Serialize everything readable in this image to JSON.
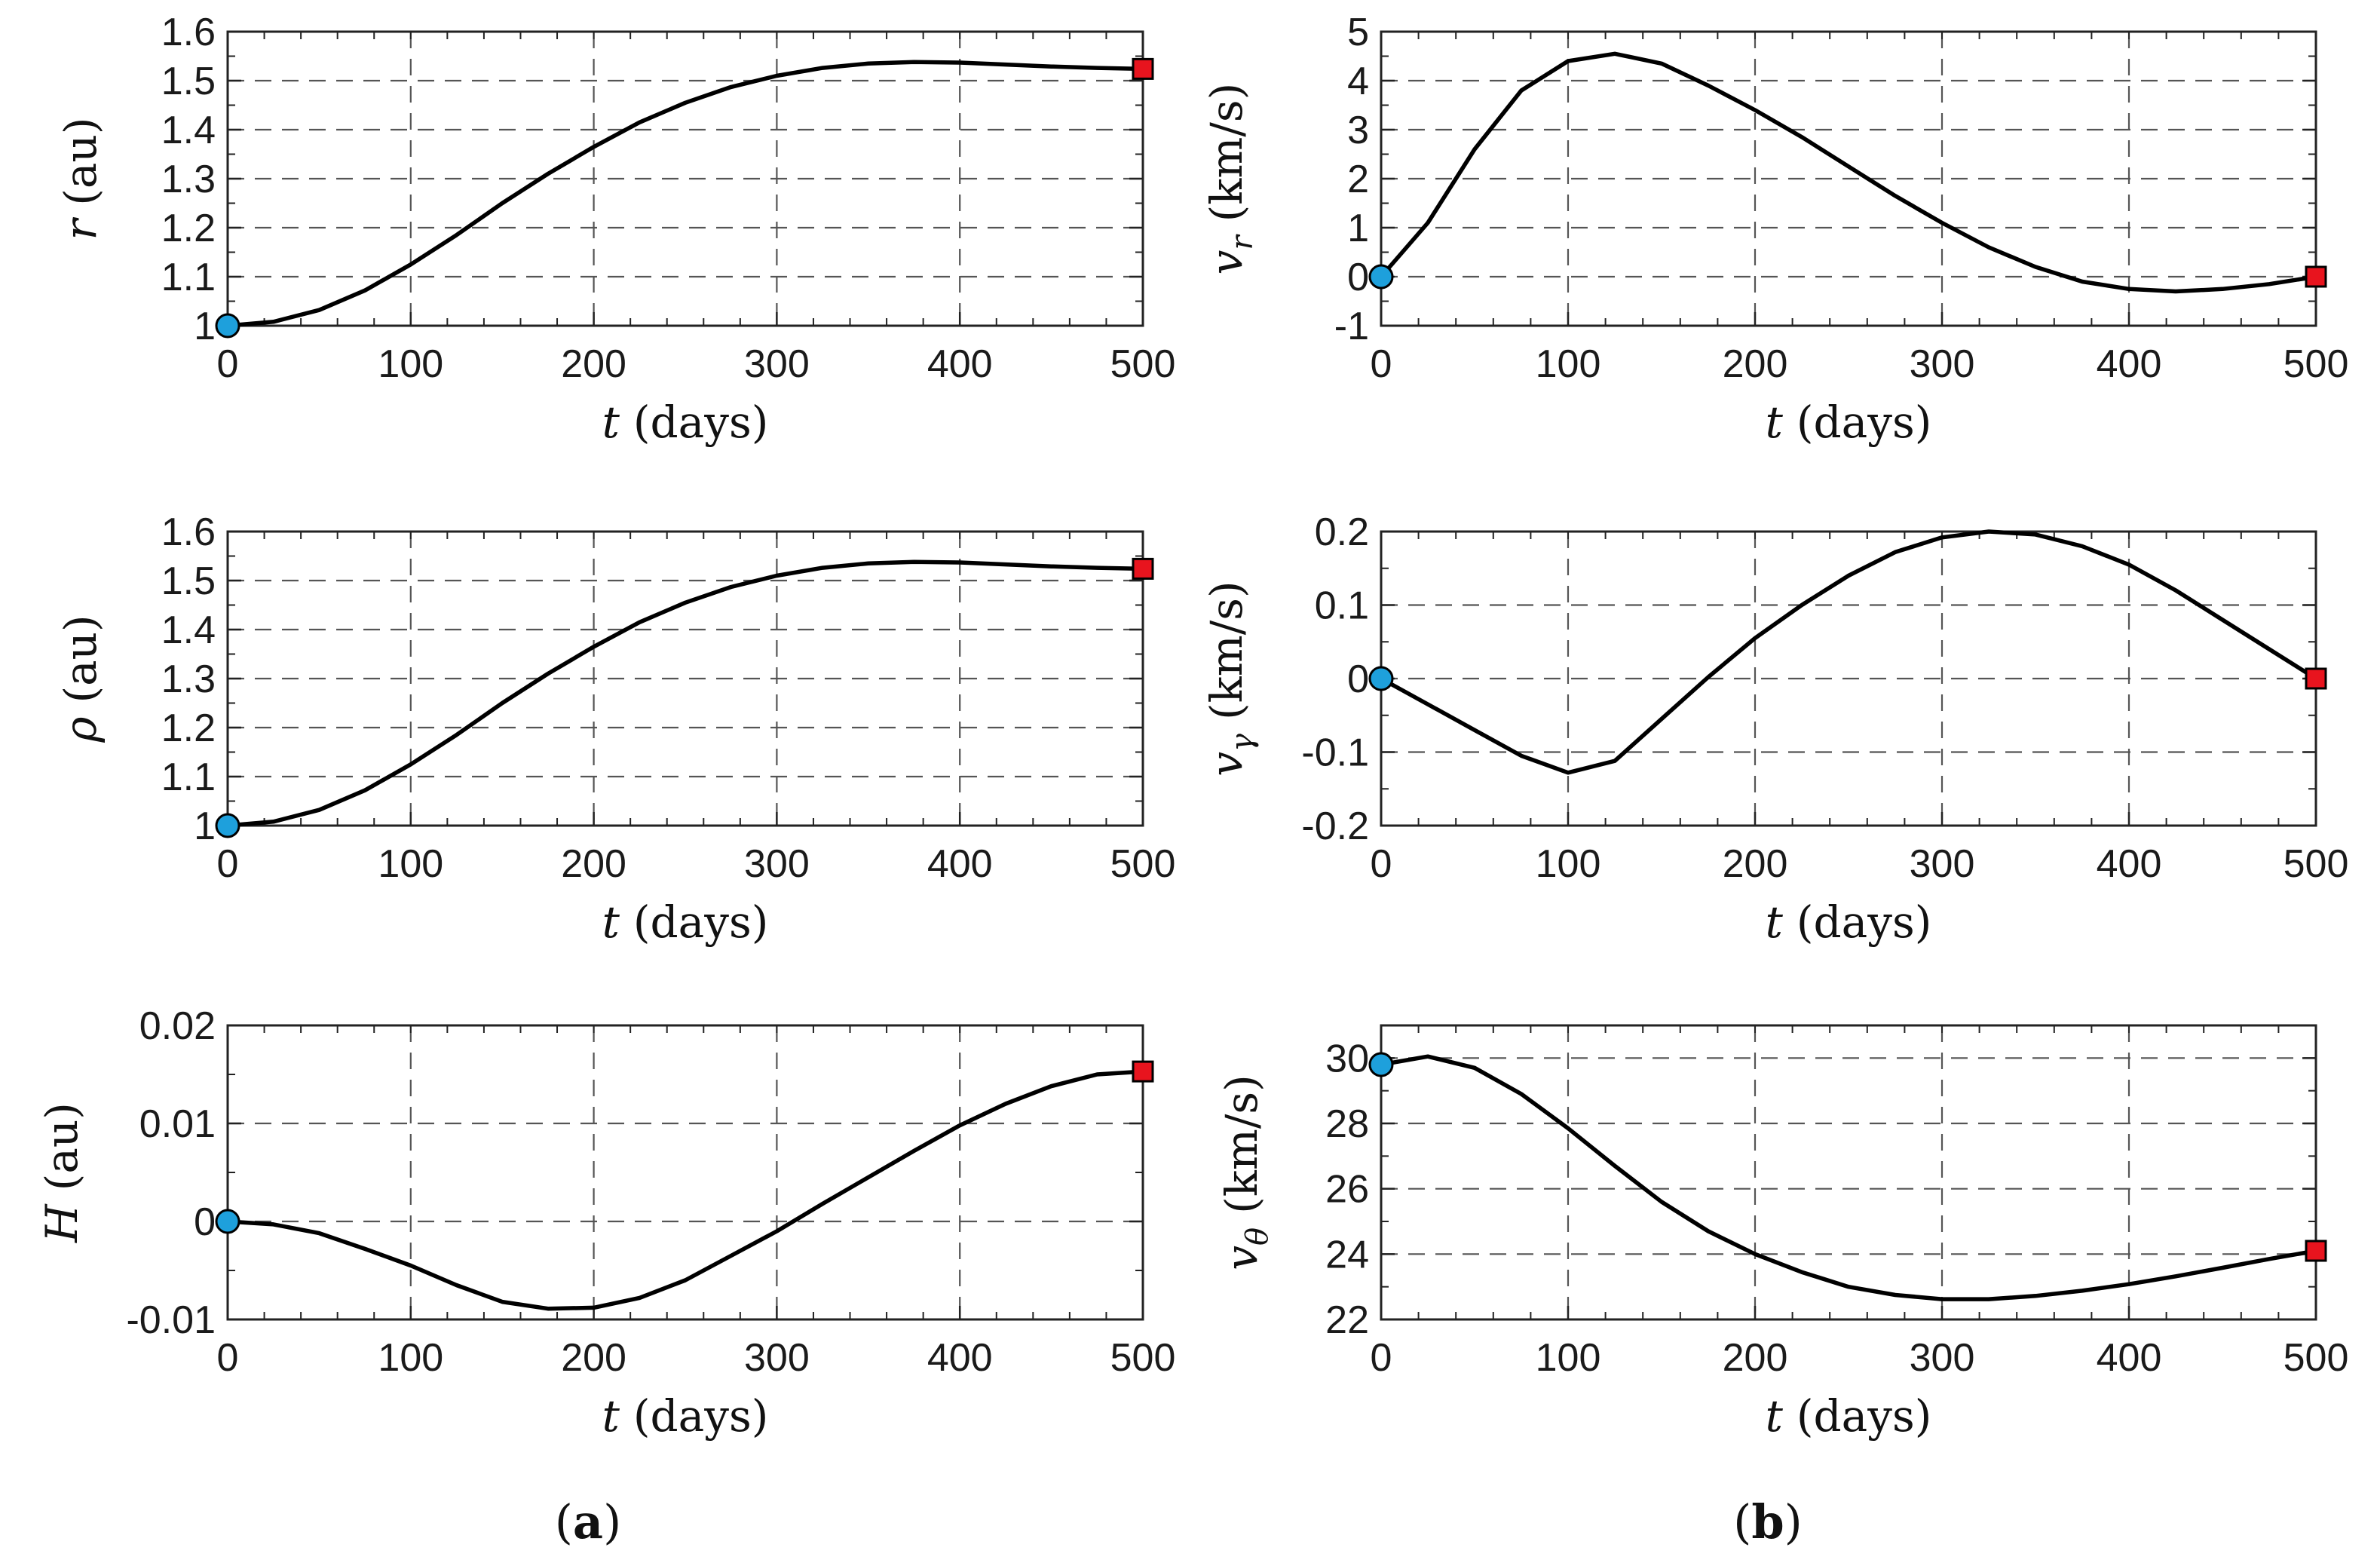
{
  "figure": {
    "panel_labels": [
      {
        "open": "(",
        "letter": "a",
        "close": ")"
      },
      {
        "open": "(",
        "letter": "b",
        "close": ")"
      }
    ],
    "start_marker_color": "#1ea0dc",
    "end_marker_color": "#e8141e",
    "line_color": "#000000"
  },
  "chart_data": [
    {
      "id": "r",
      "type": "line",
      "ylabel": {
        "symbol": "r",
        "sub": "",
        "unit": "(au)"
      },
      "xlabel": {
        "symbol": "t",
        "unit": "(days)"
      },
      "xlim": [
        0,
        500
      ],
      "ylim": [
        1.0,
        1.6
      ],
      "xticks": [
        0,
        100,
        200,
        300,
        400,
        500
      ],
      "yticks": [
        1.0,
        1.1,
        1.2,
        1.3,
        1.4,
        1.5,
        1.6
      ],
      "xtick_labels": [
        "0",
        "100",
        "200",
        "300",
        "400",
        "500"
      ],
      "ytick_labels": [
        "1",
        "1.1",
        "1.2",
        "1.3",
        "1.4",
        "1.5",
        "1.6"
      ],
      "x": [
        0,
        25,
        50,
        75,
        100,
        125,
        150,
        175,
        200,
        225,
        250,
        275,
        300,
        325,
        350,
        375,
        400,
        425,
        450,
        475,
        500
      ],
      "y": [
        1.0,
        1.008,
        1.032,
        1.072,
        1.125,
        1.185,
        1.25,
        1.31,
        1.365,
        1.415,
        1.455,
        1.487,
        1.51,
        1.526,
        1.535,
        1.538,
        1.537,
        1.533,
        1.529,
        1.526,
        1.524
      ],
      "start": [
        0,
        1.0
      ],
      "end": [
        500,
        1.524
      ]
    },
    {
      "id": "vr",
      "type": "line",
      "ylabel": {
        "symbol": "v",
        "sub": "r",
        "unit": "(km/s)"
      },
      "xlabel": {
        "symbol": "t",
        "unit": "(days)"
      },
      "xlim": [
        0,
        500
      ],
      "ylim": [
        -1,
        5
      ],
      "xticks": [
        0,
        100,
        200,
        300,
        400,
        500
      ],
      "yticks": [
        -1,
        0,
        1,
        2,
        3,
        4,
        5
      ],
      "xtick_labels": [
        "0",
        "100",
        "200",
        "300",
        "400",
        "500"
      ],
      "ytick_labels": [
        "-1",
        "0",
        "1",
        "2",
        "3",
        "4",
        "5"
      ],
      "x": [
        0,
        25,
        50,
        75,
        100,
        125,
        150,
        175,
        200,
        225,
        250,
        275,
        300,
        325,
        350,
        375,
        400,
        425,
        450,
        475,
        500
      ],
      "y": [
        0.0,
        1.1,
        2.6,
        3.8,
        4.4,
        4.55,
        4.35,
        3.9,
        3.4,
        2.85,
        2.25,
        1.65,
        1.1,
        0.6,
        0.2,
        -0.1,
        -0.25,
        -0.3,
        -0.25,
        -0.15,
        0.0
      ],
      "start": [
        0,
        0.0
      ],
      "end": [
        500,
        0.0
      ]
    },
    {
      "id": "rho",
      "type": "line",
      "ylabel": {
        "symbol": "ρ",
        "sub": "",
        "unit": "(au)"
      },
      "xlabel": {
        "symbol": "t",
        "unit": "(days)"
      },
      "xlim": [
        0,
        500
      ],
      "ylim": [
        1.0,
        1.6
      ],
      "xticks": [
        0,
        100,
        200,
        300,
        400,
        500
      ],
      "yticks": [
        1.0,
        1.1,
        1.2,
        1.3,
        1.4,
        1.5,
        1.6
      ],
      "xtick_labels": [
        "0",
        "100",
        "200",
        "300",
        "400",
        "500"
      ],
      "ytick_labels": [
        "1",
        "1.1",
        "1.2",
        "1.3",
        "1.4",
        "1.5",
        "1.6"
      ],
      "x": [
        0,
        25,
        50,
        75,
        100,
        125,
        150,
        175,
        200,
        225,
        250,
        275,
        300,
        325,
        350,
        375,
        400,
        425,
        450,
        475,
        500
      ],
      "y": [
        1.0,
        1.008,
        1.032,
        1.072,
        1.125,
        1.185,
        1.25,
        1.31,
        1.365,
        1.415,
        1.455,
        1.487,
        1.51,
        1.526,
        1.535,
        1.538,
        1.537,
        1.533,
        1.529,
        1.526,
        1.524
      ],
      "start": [
        0,
        1.0
      ],
      "end": [
        500,
        1.524
      ]
    },
    {
      "id": "vgamma",
      "type": "line",
      "ylabel": {
        "symbol": "v",
        "sub": "γ",
        "unit": "(km/s)"
      },
      "xlabel": {
        "symbol": "t",
        "unit": "(days)"
      },
      "xlim": [
        0,
        500
      ],
      "ylim": [
        -0.2,
        0.2
      ],
      "xticks": [
        0,
        100,
        200,
        300,
        400,
        500
      ],
      "yticks": [
        -0.2,
        -0.1,
        0.0,
        0.1,
        0.2
      ],
      "xtick_labels": [
        "0",
        "100",
        "200",
        "300",
        "400",
        "500"
      ],
      "ytick_labels": [
        "-0.2",
        "-0.1",
        "0",
        "0.1",
        "0.2"
      ],
      "x": [
        0,
        25,
        50,
        75,
        100,
        125,
        150,
        175,
        200,
        225,
        250,
        275,
        300,
        325,
        350,
        375,
        400,
        425,
        450,
        475,
        500
      ],
      "y": [
        0.0,
        -0.035,
        -0.07,
        -0.105,
        -0.128,
        -0.112,
        -0.055,
        0.002,
        0.055,
        0.1,
        0.14,
        0.172,
        0.192,
        0.2,
        0.196,
        0.18,
        0.155,
        0.12,
        0.08,
        0.04,
        0.0
      ],
      "start": [
        0,
        0.0
      ],
      "end": [
        500,
        0.0
      ]
    },
    {
      "id": "H",
      "type": "line",
      "ylabel": {
        "symbol": "H",
        "sub": "",
        "unit": "(au)"
      },
      "xlabel": {
        "symbol": "t",
        "unit": "(days)"
      },
      "xlim": [
        0,
        500
      ],
      "ylim": [
        -0.01,
        0.02
      ],
      "xticks": [
        0,
        100,
        200,
        300,
        400,
        500
      ],
      "yticks": [
        -0.01,
        0.0,
        0.01,
        0.02
      ],
      "xtick_labels": [
        "0",
        "100",
        "200",
        "300",
        "400",
        "500"
      ],
      "ytick_labels": [
        "-0.01",
        "0",
        "0.01",
        "0.02"
      ],
      "x": [
        0,
        25,
        50,
        75,
        100,
        125,
        150,
        175,
        200,
        225,
        250,
        275,
        300,
        325,
        350,
        375,
        400,
        425,
        450,
        475,
        500
      ],
      "y": [
        0.0,
        -0.0003,
        -0.0012,
        -0.0028,
        -0.0045,
        -0.0065,
        -0.0082,
        -0.0089,
        -0.0088,
        -0.0078,
        -0.006,
        -0.0035,
        -0.001,
        0.0018,
        0.0045,
        0.0072,
        0.0098,
        0.012,
        0.0138,
        0.015,
        0.0153
      ],
      "start": [
        0,
        0.0
      ],
      "end": [
        500,
        0.0153
      ]
    },
    {
      "id": "vtheta",
      "type": "line",
      "ylabel": {
        "symbol": "v",
        "sub": "θ",
        "unit": "(km/s)"
      },
      "xlabel": {
        "symbol": "t",
        "unit": "(days)"
      },
      "xlim": [
        0,
        500
      ],
      "ylim": [
        22,
        31
      ],
      "xticks": [
        0,
        100,
        200,
        300,
        400,
        500
      ],
      "yticks": [
        22,
        24,
        26,
        28,
        30
      ],
      "xtick_labels": [
        "0",
        "100",
        "200",
        "300",
        "400",
        "500"
      ],
      "ytick_labels": [
        "22",
        "24",
        "26",
        "28",
        "30"
      ],
      "x": [
        0,
        25,
        50,
        75,
        100,
        125,
        150,
        175,
        200,
        225,
        250,
        275,
        300,
        325,
        350,
        375,
        400,
        425,
        450,
        475,
        500
      ],
      "y": [
        29.8,
        30.05,
        29.7,
        28.9,
        27.85,
        26.7,
        25.6,
        24.7,
        24.0,
        23.45,
        23.0,
        22.75,
        22.62,
        22.62,
        22.72,
        22.88,
        23.08,
        23.32,
        23.58,
        23.85,
        24.1
      ],
      "start": [
        0,
        29.8
      ],
      "end": [
        500,
        24.1
      ]
    }
  ]
}
